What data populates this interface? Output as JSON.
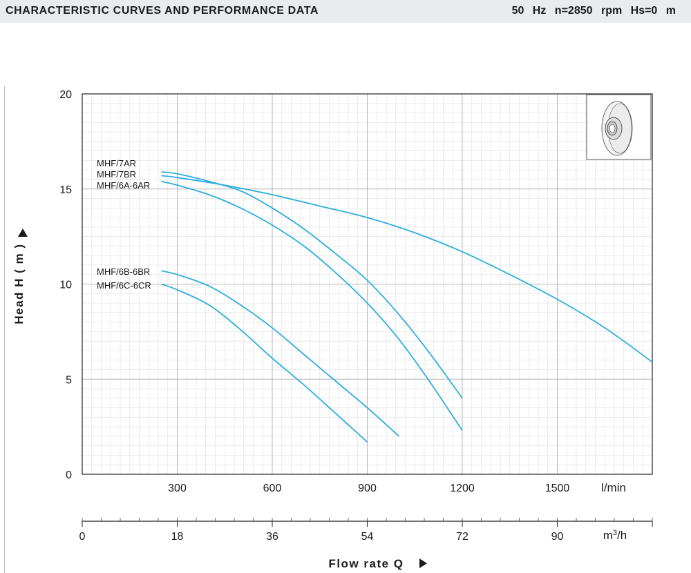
{
  "header": {
    "title": "CHARACTERISTIC CURVES AND PERFORMANCE DATA",
    "conditions": "50 Hz  n=2850  rpm  Hs=0 m"
  },
  "chart_data": {
    "type": "line",
    "xlabel": "Flow rate Q",
    "ylabel": "Head H ( m )",
    "x_unit": "l/min",
    "x2_unit_base": "m",
    "x2_unit_sup": "3",
    "x2_unit_tail": "/h",
    "xlim": [
      0,
      1800
    ],
    "ylim": [
      0,
      20
    ],
    "x_ticks": [
      300,
      600,
      900,
      1200,
      1500
    ],
    "x2_ticks": [
      0,
      18,
      36,
      54,
      72,
      90
    ],
    "y_ticks": [
      0,
      5,
      10,
      15,
      20
    ],
    "grid": true,
    "series_color": "#2aaee0",
    "series": [
      {
        "name": "MHF/7AR",
        "points": [
          [
            250,
            15.9
          ],
          [
            300,
            15.8
          ],
          [
            400,
            15.4
          ],
          [
            500,
            14.9
          ],
          [
            600,
            14.0
          ],
          [
            700,
            12.9
          ],
          [
            800,
            11.6
          ],
          [
            900,
            10.2
          ],
          [
            1000,
            8.4
          ],
          [
            1100,
            6.3
          ],
          [
            1200,
            4.0
          ]
        ]
      },
      {
        "name": "MHF/7BR",
        "points": [
          [
            250,
            15.7
          ],
          [
            300,
            15.6
          ],
          [
            450,
            15.2
          ],
          [
            600,
            14.7
          ],
          [
            750,
            14.1
          ],
          [
            900,
            13.5
          ],
          [
            1050,
            12.7
          ],
          [
            1200,
            11.7
          ],
          [
            1350,
            10.5
          ],
          [
            1500,
            9.2
          ],
          [
            1650,
            7.7
          ],
          [
            1800,
            5.9
          ]
        ]
      },
      {
        "name": "MHF/6A-6AR",
        "points": [
          [
            250,
            15.4
          ],
          [
            300,
            15.2
          ],
          [
            400,
            14.7
          ],
          [
            500,
            14.0
          ],
          [
            600,
            13.1
          ],
          [
            700,
            12.0
          ],
          [
            800,
            10.6
          ],
          [
            900,
            9.0
          ],
          [
            1000,
            7.1
          ],
          [
            1100,
            4.8
          ],
          [
            1200,
            2.3
          ]
        ]
      },
      {
        "name": "MHF/6B-6BR",
        "points": [
          [
            250,
            10.7
          ],
          [
            300,
            10.5
          ],
          [
            400,
            9.9
          ],
          [
            500,
            8.9
          ],
          [
            600,
            7.7
          ],
          [
            700,
            6.3
          ],
          [
            800,
            4.9
          ],
          [
            900,
            3.5
          ],
          [
            1000,
            2.0
          ]
        ]
      },
      {
        "name": "MHF/6C-6CR",
        "points": [
          [
            250,
            10.0
          ],
          [
            300,
            9.7
          ],
          [
            400,
            8.9
          ],
          [
            500,
            7.6
          ],
          [
            600,
            6.1
          ],
          [
            700,
            4.7
          ],
          [
            800,
            3.2
          ],
          [
            900,
            1.7
          ]
        ]
      }
    ]
  }
}
